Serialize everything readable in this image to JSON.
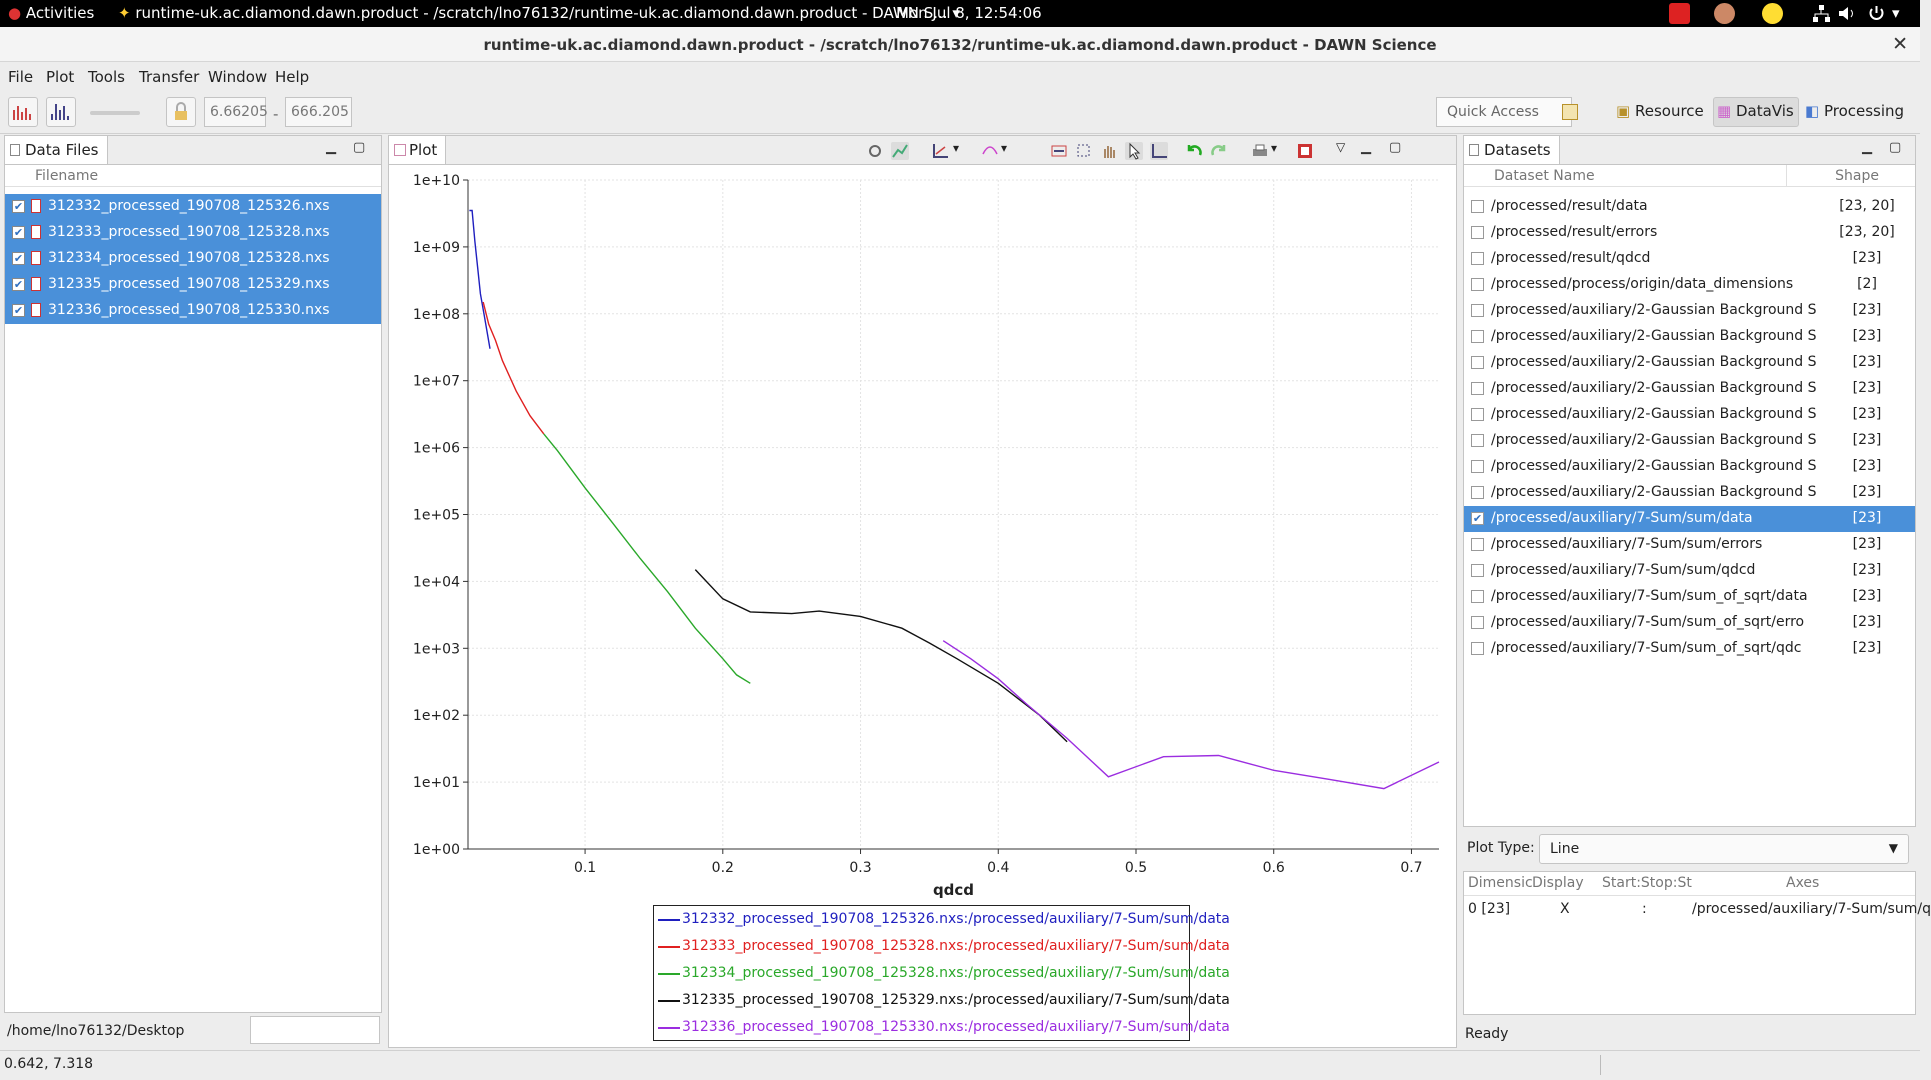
{
  "topbar": {
    "activities": "Activities",
    "window_title": "runtime-uk.ac.diamond.dawn.product - /scratch/lno76132/runtime-uk.ac.diamond.dawn.product - DAWN S...",
    "clock": "Mon Jul  8, 12:54:06"
  },
  "window": {
    "title": "runtime-uk.ac.diamond.dawn.product - /scratch/lno76132/runtime-uk.ac.diamond.dawn.product - DAWN Science",
    "close": "✕"
  },
  "menu": [
    "File",
    "Plot",
    "Tools",
    "Transfer",
    "Window",
    "Help"
  ],
  "toolbar": {
    "range_min": "6.66205",
    "range_sep": "-",
    "range_max": "666.205",
    "quick_access": "Quick Access",
    "perspectives": [
      "Resource",
      "DataVis",
      "Processing"
    ]
  },
  "data_files": {
    "tab": "Data Files",
    "header": "Filename",
    "files": [
      "312332_processed_190708_125326.nxs",
      "312333_processed_190708_125328.nxs",
      "312334_processed_190708_125328.nxs",
      "312335_processed_190708_125329.nxs",
      "312336_processed_190708_125330.nxs"
    ],
    "path": "/home/lno76132/Desktop"
  },
  "plot": {
    "tab": "Plot"
  },
  "chart_data": {
    "type": "line",
    "xlabel": "qdcd",
    "ylabel": "",
    "xlim": [
      0.015,
      0.72
    ],
    "ylim": [
      1,
      10000000000
    ],
    "log_y": true,
    "grid": true,
    "x_ticks": [
      "0.1",
      "0.2",
      "0.3",
      "0.4",
      "0.5",
      "0.6",
      "0.7"
    ],
    "y_ticks": [
      "1e+00",
      "1e+01",
      "1e+02",
      "1e+03",
      "1e+04",
      "1e+05",
      "1e+06",
      "1e+07",
      "1e+08",
      "1e+09",
      "1e+10"
    ],
    "legend_position": "bottom",
    "series": [
      {
        "name": "312332_processed_190708_125326.nxs:/processed/auxiliary/7-Sum/sum/data",
        "color": "#1f1fbf",
        "x": [
          0.016,
          0.018,
          0.02,
          0.022,
          0.024,
          0.027,
          0.031
        ],
        "y": [
          3500000000,
          3500000000,
          1200000000,
          500000000,
          200000000,
          90000000,
          30000000
        ]
      },
      {
        "name": "312333_processed_190708_125328.nxs:/processed/auxiliary/7-Sum/sum/data",
        "color": "#e02020",
        "x": [
          0.026,
          0.03,
          0.035,
          0.04,
          0.05,
          0.06,
          0.07
        ],
        "y": [
          150000000,
          70000000,
          40000000,
          20000000,
          7000000,
          3000000,
          1600000
        ]
      },
      {
        "name": "312334_processed_190708_125328.nxs:/processed/auxiliary/7-Sum/sum/data",
        "color": "#2aa82a",
        "x": [
          0.07,
          0.08,
          0.1,
          0.12,
          0.14,
          0.16,
          0.18,
          0.2,
          0.21,
          0.22
        ],
        "y": [
          1600000,
          900000,
          250000,
          75000,
          22000,
          7000,
          2000,
          700,
          400,
          300
        ]
      },
      {
        "name": "312335_processed_190708_125329.nxs:/processed/auxiliary/7-Sum/sum/data",
        "color": "#111111",
        "x": [
          0.18,
          0.2,
          0.22,
          0.25,
          0.27,
          0.3,
          0.33,
          0.35,
          0.37,
          0.4,
          0.43,
          0.45
        ],
        "y": [
          15000,
          5500,
          3500,
          3300,
          3600,
          3000,
          2000,
          1200,
          700,
          300,
          100,
          40
        ]
      },
      {
        "name": "312336_processed_190708_125330.nxs:/processed/auxiliary/7-Sum/sum/data",
        "color": "#9b2de0",
        "x": [
          0.36,
          0.38,
          0.4,
          0.42,
          0.45,
          0.48,
          0.52,
          0.56,
          0.6,
          0.64,
          0.68,
          0.72
        ],
        "y": [
          1300,
          700,
          350,
          150,
          45,
          12,
          24,
          25,
          15,
          11,
          8,
          20
        ]
      }
    ]
  },
  "datasets": {
    "tab": "Datasets",
    "col_name": "Dataset Name",
    "col_shape": "Shape",
    "rows": [
      {
        "name": "/processed/result/data",
        "shape": "[23, 20]",
        "checked": false
      },
      {
        "name": "/processed/result/errors",
        "shape": "[23, 20]",
        "checked": false
      },
      {
        "name": "/processed/result/qdcd",
        "shape": "[23]",
        "checked": false
      },
      {
        "name": "/processed/process/origin/data_dimensions",
        "shape": "[2]",
        "checked": false
      },
      {
        "name": "/processed/auxiliary/2-Gaussian Background S",
        "shape": "[23]",
        "checked": false
      },
      {
        "name": "/processed/auxiliary/2-Gaussian Background S",
        "shape": "[23]",
        "checked": false
      },
      {
        "name": "/processed/auxiliary/2-Gaussian Background S",
        "shape": "[23]",
        "checked": false
      },
      {
        "name": "/processed/auxiliary/2-Gaussian Background S",
        "shape": "[23]",
        "checked": false
      },
      {
        "name": "/processed/auxiliary/2-Gaussian Background S",
        "shape": "[23]",
        "checked": false
      },
      {
        "name": "/processed/auxiliary/2-Gaussian Background S",
        "shape": "[23]",
        "checked": false
      },
      {
        "name": "/processed/auxiliary/2-Gaussian Background S",
        "shape": "[23]",
        "checked": false
      },
      {
        "name": "/processed/auxiliary/2-Gaussian Background S",
        "shape": "[23]",
        "checked": false
      },
      {
        "name": "/processed/auxiliary/7-Sum/sum/data",
        "shape": "[23]",
        "checked": true
      },
      {
        "name": "/processed/auxiliary/7-Sum/sum/errors",
        "shape": "[23]",
        "checked": false
      },
      {
        "name": "/processed/auxiliary/7-Sum/sum/qdcd",
        "shape": "[23]",
        "checked": false
      },
      {
        "name": "/processed/auxiliary/7-Sum/sum_of_sqrt/data",
        "shape": "[23]",
        "checked": false
      },
      {
        "name": "/processed/auxiliary/7-Sum/sum_of_sqrt/erro",
        "shape": "[23]",
        "checked": false
      },
      {
        "name": "/processed/auxiliary/7-Sum/sum_of_sqrt/qdc",
        "shape": "[23]",
        "checked": false
      }
    ],
    "plot_type_label": "Plot Type:",
    "plot_type_value": "Line",
    "axes_headers": [
      "Dimensic",
      "Display",
      "Start:Stop:St",
      "Axes"
    ],
    "axes_row": [
      "0 [23]",
      "X",
      ":",
      "/processed/auxiliary/7-Sum/sum/q"
    ],
    "status": "Ready"
  },
  "statusbar": {
    "coords": "0.642, 7.318"
  }
}
